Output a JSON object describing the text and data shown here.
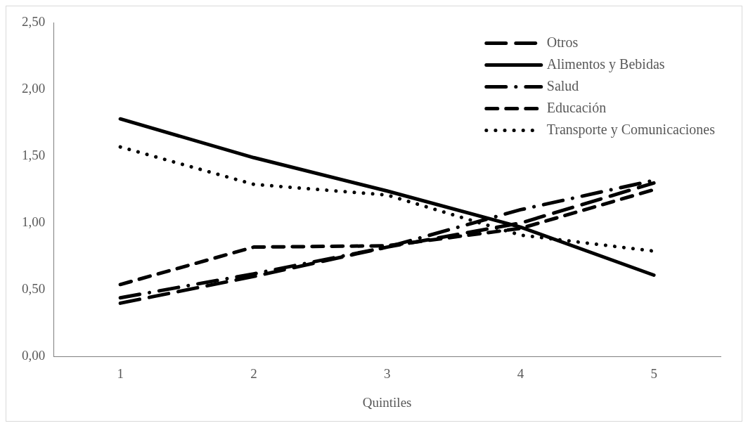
{
  "chart_data": {
    "type": "line",
    "xlabel": "Quintiles",
    "categories": [
      "1",
      "2",
      "3",
      "4",
      "5"
    ],
    "ylim": [
      0,
      2.5
    ],
    "yticks": [
      {
        "value": 0,
        "label": "0,00"
      },
      {
        "value": 0.5,
        "label": "0,50"
      },
      {
        "value": 1,
        "label": "1,00"
      },
      {
        "value": 1.5,
        "label": "1,50"
      },
      {
        "value": 2,
        "label": "2,00"
      },
      {
        "value": 2.5,
        "label": "2,50"
      }
    ],
    "grid": false,
    "legend": "top right",
    "marker": "none",
    "series": [
      {
        "name": "Otros",
        "color": "#000000",
        "line_style": "longdash",
        "values": [
          0.4,
          0.6,
          0.82,
          1.0,
          1.3
        ]
      },
      {
        "name": "Alimentos y Bebidas",
        "color": "#000000",
        "line_style": "solid",
        "values": [
          1.78,
          1.49,
          1.24,
          0.97,
          0.61
        ]
      },
      {
        "name": "Salud",
        "color": "#000000",
        "line_style": "dashdot",
        "values": [
          0.44,
          0.62,
          0.82,
          1.1,
          1.32
        ]
      },
      {
        "name": "Educación",
        "color": "#000000",
        "line_style": "dashed",
        "values": [
          0.54,
          0.82,
          0.83,
          0.96,
          1.25
        ]
      },
      {
        "name": "Transporte y Comunicaciones",
        "color": "#000000",
        "line_style": "dotted",
        "values": [
          1.57,
          1.29,
          1.21,
          0.91,
          0.79
        ]
      }
    ]
  }
}
